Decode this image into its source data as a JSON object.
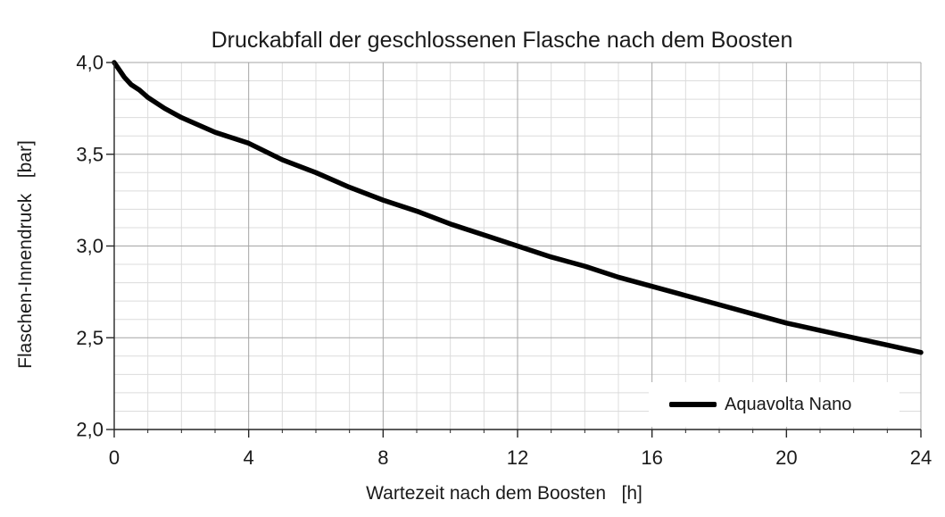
{
  "page": {
    "background": "#ffffff",
    "text_color": "#1a1a1a"
  },
  "chart_data": {
    "type": "line",
    "title": "Druckabfall der geschlossenen Flasche nach dem Boosten",
    "xlabel": "Wartezeit nach dem Boosten   [h]",
    "ylabel": "Flaschen-Innendruck   [bar]",
    "xlim": [
      0,
      24
    ],
    "ylim": [
      2.0,
      4.0
    ],
    "x_major_ticks": [
      0,
      4,
      8,
      12,
      16,
      20,
      24
    ],
    "x_tick_labels": [
      "0",
      "4",
      "8",
      "12",
      "16",
      "20",
      "24"
    ],
    "x_minor_step": 1,
    "y_major_ticks": [
      2.0,
      2.5,
      3.0,
      3.5,
      4.0
    ],
    "y_tick_labels": [
      "2,0",
      "2,5",
      "3,0",
      "3,5",
      "4,0"
    ],
    "y_minor_step": 0.1,
    "grid": "major+minor",
    "legend_position": "bottom-right-inside",
    "colors": {
      "series": "#000000",
      "minor_grid": "#dcdcdc",
      "major_grid": "#a6a6a6",
      "axis": "#262626"
    },
    "series": [
      {
        "name": "Aquavolta Nano",
        "color": "#000000",
        "x": [
          0,
          0.15,
          0.3,
          0.5,
          0.75,
          1,
          1.5,
          2,
          2.5,
          3,
          3.5,
          4,
          5,
          6,
          7,
          8,
          9,
          10,
          11,
          12,
          13,
          14,
          15,
          16,
          17,
          18,
          19,
          20,
          21,
          22,
          23,
          24
        ],
        "y": [
          4.0,
          3.96,
          3.92,
          3.88,
          3.85,
          3.81,
          3.75,
          3.7,
          3.66,
          3.62,
          3.59,
          3.56,
          3.47,
          3.4,
          3.32,
          3.25,
          3.19,
          3.12,
          3.06,
          3.0,
          2.94,
          2.89,
          2.83,
          2.78,
          2.73,
          2.68,
          2.63,
          2.58,
          2.54,
          2.5,
          2.46,
          2.42
        ]
      }
    ]
  }
}
